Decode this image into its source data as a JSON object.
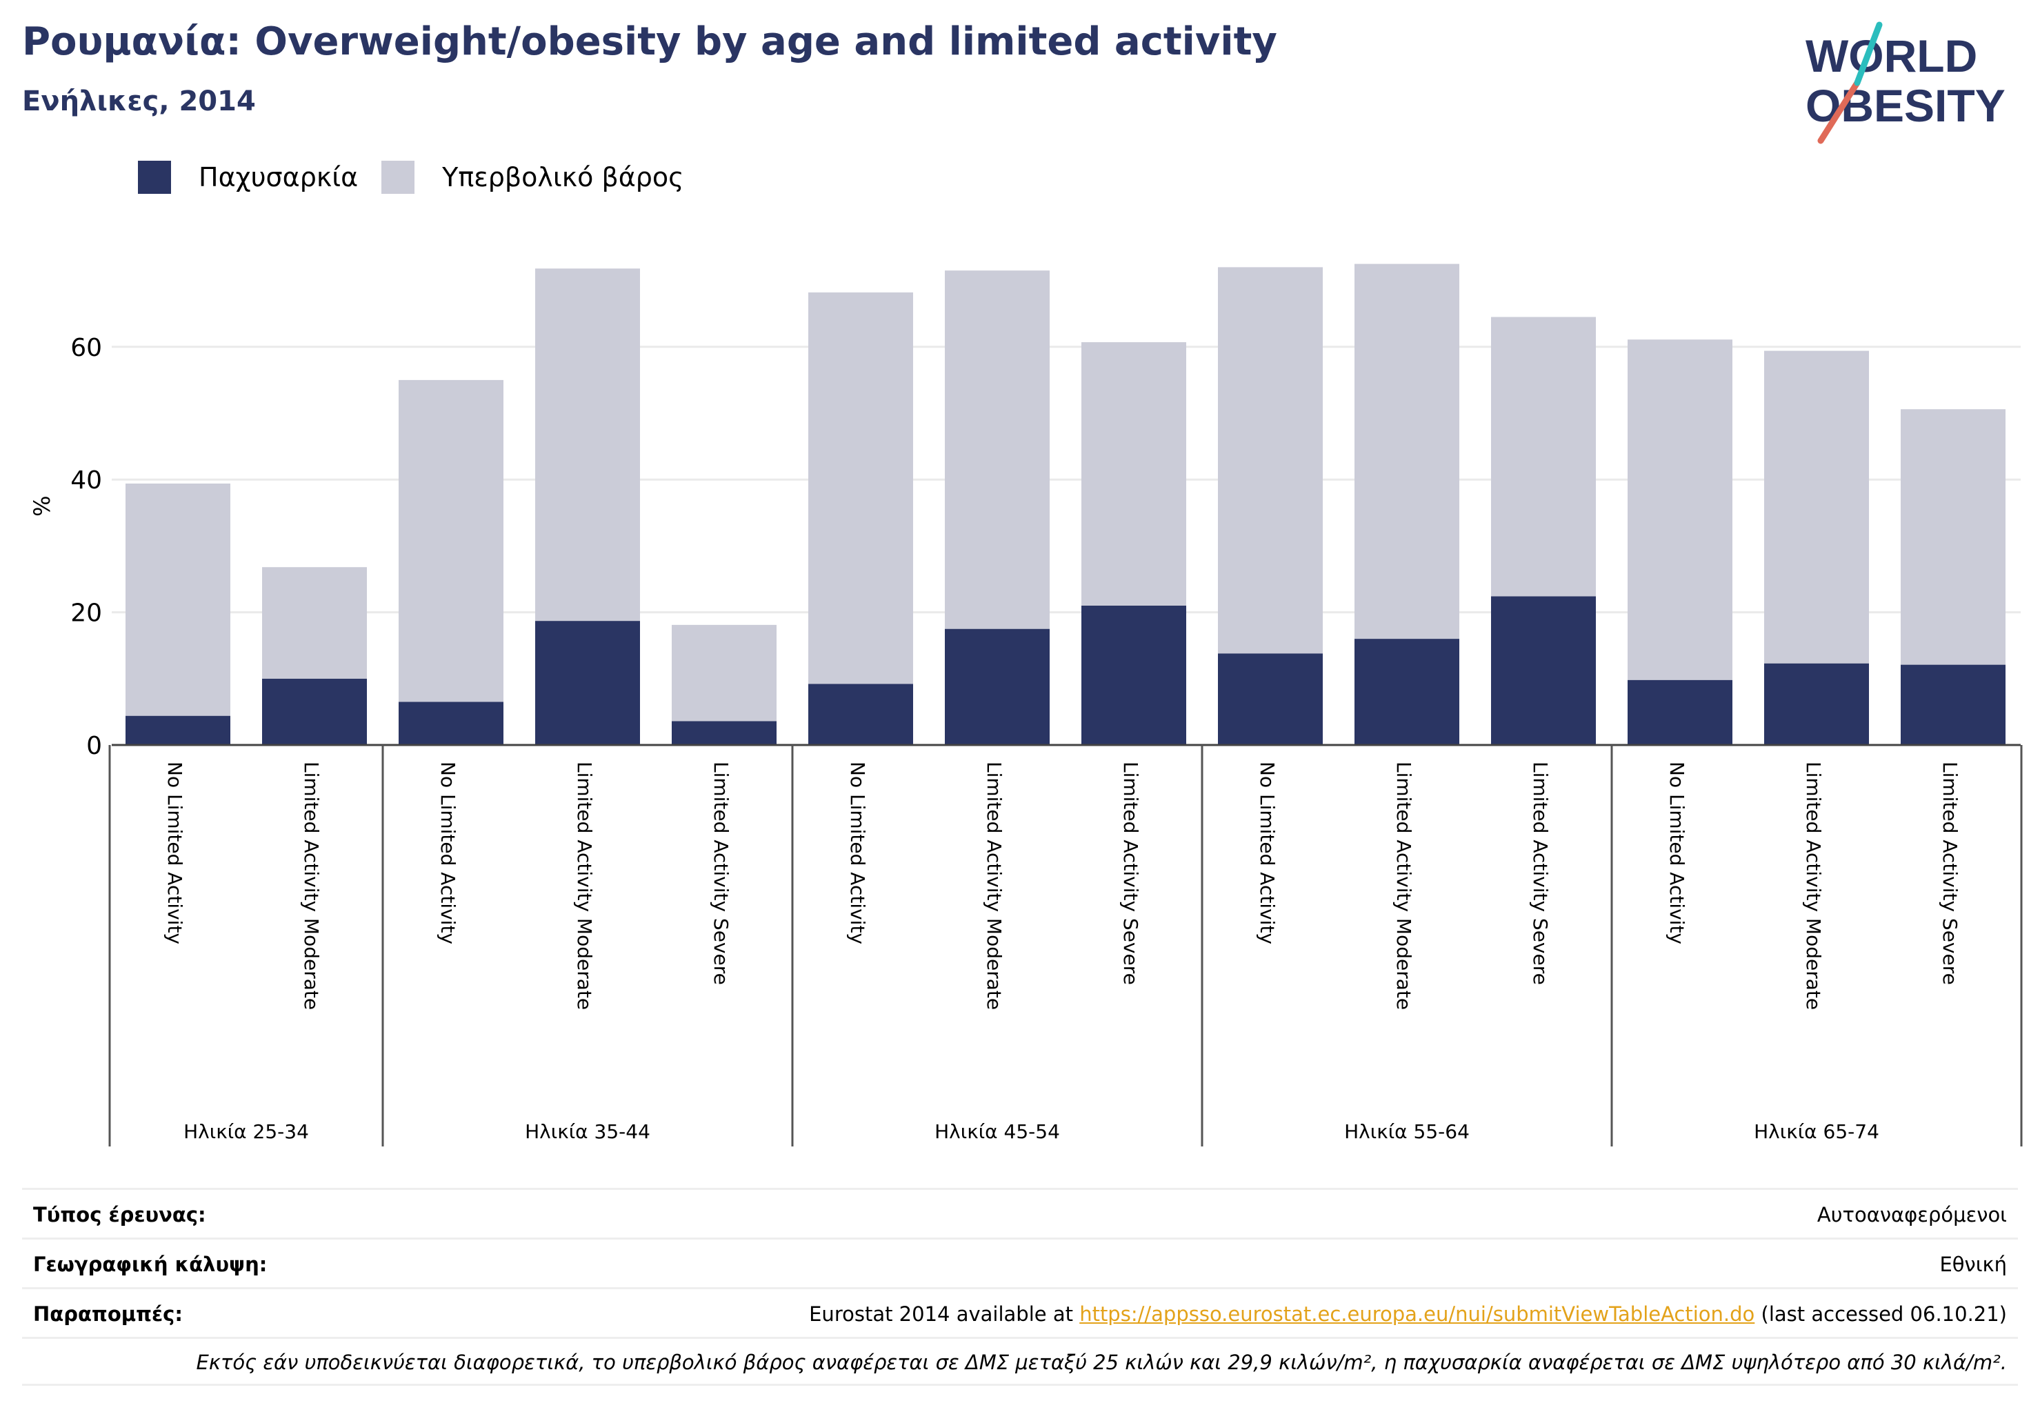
{
  "title": "Ρουμανία: Overweight/obesity by age and limited activity",
  "subtitle": "Ενήλικες, 2014",
  "logo": {
    "line1": "WORLD",
    "line2": "OBESITY"
  },
  "colors": {
    "obesity": "#2a3563",
    "overweight": "#cbccd8",
    "accent_red": "#e06a58",
    "accent_teal": "#2bbdbd",
    "link": "#e3a21a"
  },
  "chart_data": {
    "type": "bar",
    "stacked": true,
    "ylabel": "%",
    "ylim": [
      0,
      80
    ],
    "yticks": [
      0,
      20,
      40,
      60
    ],
    "grid": true,
    "legend": "top-left",
    "series": [
      {
        "name": "Παχυσαρκία",
        "color": "#2a3563",
        "values": [
          4.4,
          10.0,
          6.5,
          18.7,
          3.6,
          9.2,
          17.5,
          21.0,
          13.8,
          16.0,
          22.4,
          9.8,
          12.3,
          12.1
        ]
      },
      {
        "name": "Υπερβολικό βάρος",
        "color": "#cbccd8",
        "values": [
          35.0,
          16.8,
          48.5,
          53.1,
          14.5,
          59.0,
          54.0,
          39.7,
          58.2,
          56.5,
          42.1,
          51.3,
          47.1,
          38.5
        ]
      }
    ],
    "categories": [
      "No Limited Activity",
      "Limited Activity Moderate",
      "No Limited Activity",
      "Limited Activity Moderate",
      "Limited Activity Severe",
      "No Limited Activity",
      "Limited Activity Moderate",
      "Limited Activity Severe",
      "No Limited Activity",
      "Limited Activity Moderate",
      "Limited Activity Severe",
      "No Limited Activity",
      "Limited Activity Moderate",
      "Limited Activity Severe"
    ],
    "groups": [
      {
        "label": "Ηλικία 25-34",
        "count": 2
      },
      {
        "label": "Ηλικία 35-44",
        "count": 3
      },
      {
        "label": "Ηλικία 45-54",
        "count": 3
      },
      {
        "label": "Ηλικία 55-64",
        "count": 3
      },
      {
        "label": "Ηλικία 65-74",
        "count": 3
      }
    ]
  },
  "info": {
    "survey_label": "Τύπος έρευνας:",
    "survey_value": "Αυτοαναφερόμενοι",
    "coverage_label": "Γεωγραφική κάλυψη:",
    "coverage_value": "Εθνική",
    "refs_label": "Παραπομπές:",
    "refs_prefix": "Eurostat 2014 available at ",
    "refs_link": "https://appsso.eurostat.ec.europa.eu/nui/submitViewTableAction.do",
    "refs_suffix": " (last accessed 06.10.21)",
    "note": "Εκτός εάν υποδεικνύεται διαφορετικά, το υπερβολικό βάρος αναφέρεται σε ΔΜΣ μεταξύ 25 κιλών και 29,9 κιλών/m², η παχυσαρκία αναφέρεται σε ΔΜΣ υψηλότερο από 30 κιλά/m²."
  }
}
